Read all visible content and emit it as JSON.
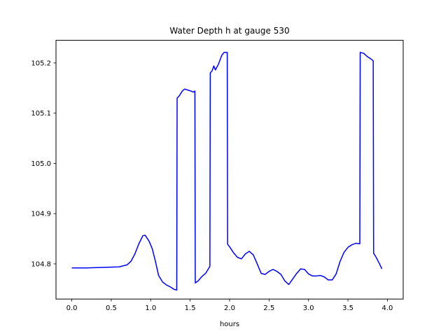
{
  "chart_data": {
    "type": "line",
    "title": "Water Depth h at gauge 530",
    "xlabel": "hours",
    "ylabel": "",
    "xlim": [
      -0.2,
      4.2
    ],
    "ylim": [
      104.73,
      105.245
    ],
    "xticks": [
      0.0,
      0.5,
      1.0,
      1.5,
      2.0,
      2.5,
      3.0,
      3.5,
      4.0
    ],
    "xtick_labels": [
      "0.0",
      "0.5",
      "1.0",
      "1.5",
      "2.0",
      "2.5",
      "3.0",
      "3.5",
      "4.0"
    ],
    "yticks": [
      104.8,
      104.9,
      105.0,
      105.1,
      105.2
    ],
    "ytick_labels": [
      "104.8",
      "104.9",
      "105.0",
      "105.1",
      "105.2"
    ],
    "grid": false,
    "colors": {
      "line": "#0000ff",
      "axes": "#000000",
      "background": "#ffffff"
    },
    "series": [
      {
        "color": "#0000ff",
        "points": [
          [
            0.0,
            104.792
          ],
          [
            0.2,
            104.792
          ],
          [
            0.4,
            104.793
          ],
          [
            0.6,
            104.794
          ],
          [
            0.7,
            104.798
          ],
          [
            0.75,
            104.805
          ],
          [
            0.8,
            104.82
          ],
          [
            0.85,
            104.84
          ],
          [
            0.9,
            104.856
          ],
          [
            0.93,
            104.857
          ],
          [
            0.98,
            104.845
          ],
          [
            1.02,
            104.83
          ],
          [
            1.06,
            104.805
          ],
          [
            1.1,
            104.777
          ],
          [
            1.15,
            104.764
          ],
          [
            1.2,
            104.758
          ],
          [
            1.25,
            104.754
          ],
          [
            1.3,
            104.749
          ],
          [
            1.33,
            104.748
          ],
          [
            1.335,
            105.13
          ],
          [
            1.36,
            105.134
          ],
          [
            1.4,
            105.144
          ],
          [
            1.43,
            105.148
          ],
          [
            1.47,
            105.146
          ],
          [
            1.51,
            105.144
          ],
          [
            1.54,
            105.142
          ],
          [
            1.56,
            105.144
          ],
          [
            1.565,
            104.762
          ],
          [
            1.6,
            104.766
          ],
          [
            1.65,
            104.775
          ],
          [
            1.7,
            104.782
          ],
          [
            1.75,
            104.795
          ],
          [
            1.755,
            105.18
          ],
          [
            1.78,
            105.185
          ],
          [
            1.8,
            105.194
          ],
          [
            1.82,
            105.186
          ],
          [
            1.86,
            105.198
          ],
          [
            1.9,
            105.215
          ],
          [
            1.93,
            105.221
          ],
          [
            1.97,
            105.221
          ],
          [
            1.975,
            104.839
          ],
          [
            2.0,
            104.834
          ],
          [
            2.05,
            104.822
          ],
          [
            2.1,
            104.813
          ],
          [
            2.15,
            104.81
          ],
          [
            2.2,
            104.82
          ],
          [
            2.25,
            104.825
          ],
          [
            2.3,
            104.818
          ],
          [
            2.35,
            104.8
          ],
          [
            2.4,
            104.781
          ],
          [
            2.45,
            104.779
          ],
          [
            2.5,
            104.785
          ],
          [
            2.55,
            104.789
          ],
          [
            2.6,
            104.785
          ],
          [
            2.65,
            104.779
          ],
          [
            2.7,
            104.766
          ],
          [
            2.75,
            104.759
          ],
          [
            2.8,
            104.77
          ],
          [
            2.85,
            104.781
          ],
          [
            2.9,
            104.79
          ],
          [
            2.95,
            104.789
          ],
          [
            3.0,
            104.78
          ],
          [
            3.05,
            104.776
          ],
          [
            3.1,
            104.776
          ],
          [
            3.15,
            104.777
          ],
          [
            3.2,
            104.774
          ],
          [
            3.25,
            104.768
          ],
          [
            3.3,
            104.768
          ],
          [
            3.35,
            104.78
          ],
          [
            3.4,
            104.805
          ],
          [
            3.45,
            104.823
          ],
          [
            3.5,
            104.833
          ],
          [
            3.55,
            104.838
          ],
          [
            3.6,
            104.841
          ],
          [
            3.65,
            104.84
          ],
          [
            3.655,
            105.221
          ],
          [
            3.7,
            105.219
          ],
          [
            3.75,
            105.212
          ],
          [
            3.8,
            105.207
          ],
          [
            3.82,
            105.204
          ],
          [
            3.825,
            104.821
          ],
          [
            3.85,
            104.815
          ],
          [
            3.9,
            104.8
          ],
          [
            3.93,
            104.79
          ]
        ]
      }
    ]
  }
}
